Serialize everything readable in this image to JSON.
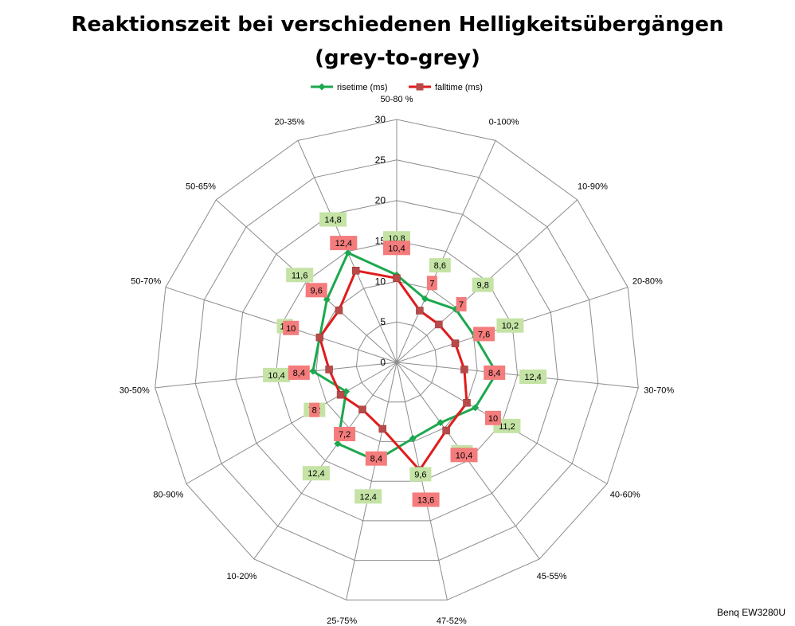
{
  "chart_data": {
    "type": "radar",
    "title_line1": "Reaktionszeit bei verschiedenen Helligkeitsübergängen",
    "title_line2": "(grey-to-grey)",
    "categories": [
      "50-80 %",
      "0-100%",
      "10-90%",
      "20-80%",
      "30-70%",
      "40-60%",
      "45-55%",
      "47-52%",
      "25-75%",
      "10-20%",
      "80-90%",
      "30-50%",
      "50-70%",
      "50-65%",
      "20-35%"
    ],
    "r_ticks": [
      0,
      5,
      10,
      15,
      20,
      25,
      30
    ],
    "rlim": [
      0,
      30
    ],
    "grid": true,
    "legend_position": "top",
    "series": [
      {
        "name": "risetime (ms)",
        "color": "#1ca84e",
        "marker": "diamond",
        "values": [
          10.8,
          8.6,
          9.8,
          10.2,
          12.4,
          11.2,
          9.2,
          9.6,
          12.4,
          12.4,
          7.2,
          10.4,
          10,
          11.6,
          14.8
        ],
        "labels": [
          "10,8",
          "8,6",
          "9,8",
          "10,2",
          "12,4",
          "11,2",
          "9,2",
          "9,6",
          "12,4",
          "12,4",
          "7,2",
          "10,4",
          "10",
          "11,6",
          "14,8"
        ],
        "label_bg": "#c4e3a5"
      },
      {
        "name": "falltime (ms)",
        "color": "#e01b1b",
        "marker": "square",
        "values": [
          10.4,
          7,
          7,
          7.6,
          8.4,
          10,
          10.4,
          13.6,
          8.4,
          7.2,
          8,
          8.4,
          10,
          9.6,
          12.4
        ],
        "labels": [
          "10,4",
          "7",
          "7",
          "7,6",
          "8,4",
          "10",
          "10,4",
          "13,6",
          "8,4",
          "7,2",
          "8",
          "8,4",
          "10",
          "9,6",
          "12,4"
        ],
        "label_bg": "#f47c7c"
      }
    ]
  },
  "credit": "Benq EW3280U"
}
